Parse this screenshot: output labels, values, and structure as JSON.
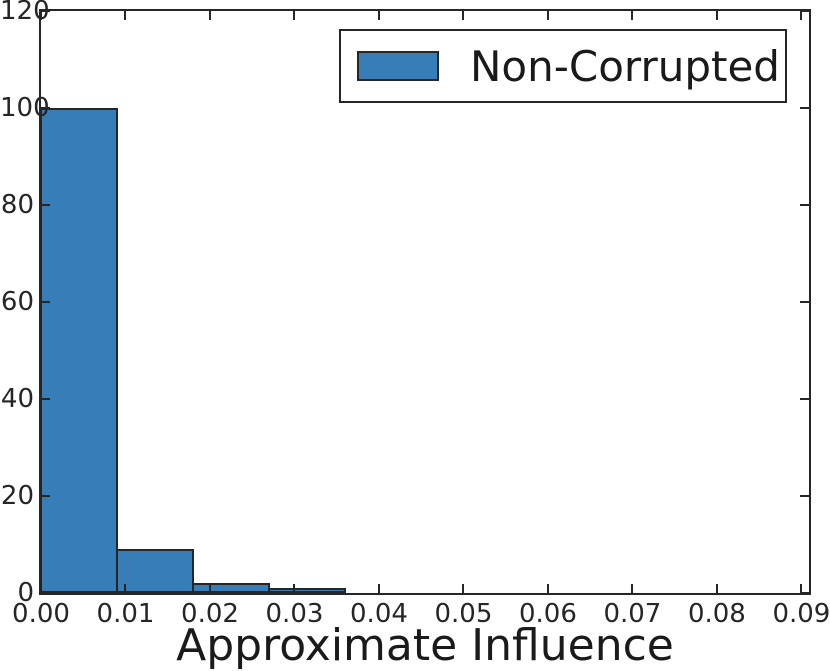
{
  "figure": {
    "xlabel": "Approximate Influence",
    "legend_label": "Non-Corrupted"
  },
  "chart_data": {
    "type": "bar",
    "subtype": "histogram",
    "title": "",
    "xlabel": "Approximate Influence",
    "ylabel": "",
    "legend": [
      "Non-Corrupted"
    ],
    "legend_position": "upper right",
    "grid": false,
    "xlim": [
      0,
      0.0909
    ],
    "ylim": [
      0,
      120
    ],
    "bin_edges": [
      0.0,
      0.009,
      0.018,
      0.027,
      0.036,
      0.045,
      0.054,
      0.063,
      0.072,
      0.081,
      0.09
    ],
    "series": [
      {
        "name": "Non-Corrupted",
        "counts": [
          100,
          9,
          2,
          1,
          0,
          0,
          0,
          0,
          0,
          0
        ]
      }
    ],
    "x_ticks": [
      {
        "value": 0.0,
        "label": "0.00"
      },
      {
        "value": 0.01,
        "label": "0.01"
      },
      {
        "value": 0.02,
        "label": "0.02"
      },
      {
        "value": 0.03,
        "label": "0.03"
      },
      {
        "value": 0.04,
        "label": "0.04"
      },
      {
        "value": 0.05,
        "label": "0.05"
      },
      {
        "value": 0.06,
        "label": "0.06"
      },
      {
        "value": 0.07,
        "label": "0.07"
      },
      {
        "value": 0.08,
        "label": "0.08"
      },
      {
        "value": 0.09,
        "label": "0.09"
      }
    ],
    "y_ticks": [
      {
        "value": 0,
        "label": "0"
      },
      {
        "value": 20,
        "label": "20"
      },
      {
        "value": 40,
        "label": "40"
      },
      {
        "value": 60,
        "label": "60"
      },
      {
        "value": 80,
        "label": "80"
      },
      {
        "value": 100,
        "label": "100"
      },
      {
        "value": 120,
        "label": "120"
      }
    ],
    "colors": {
      "bar_fill": "#377EB8",
      "bar_edge": "#262626",
      "axis": "#262626",
      "text": "#1A1A1A",
      "background": "#FFFFFF"
    }
  }
}
